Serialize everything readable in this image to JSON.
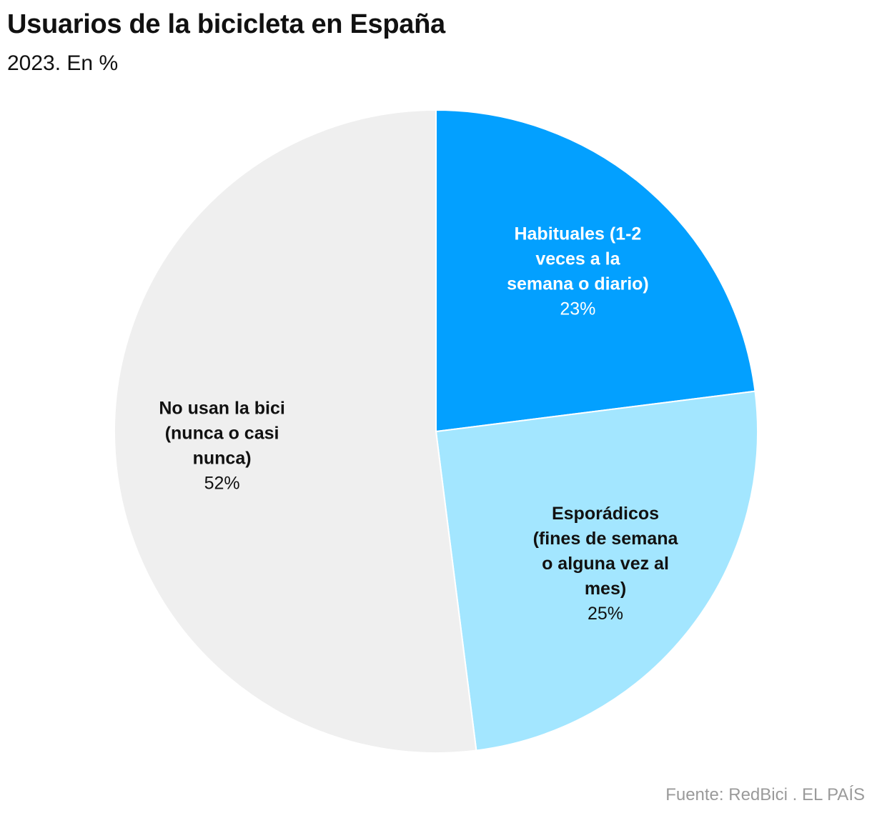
{
  "header": {
    "title": "Usuarios de la bicicleta en España",
    "subtitle": "2023. En %"
  },
  "footer": {
    "source": "Fuente: RedBici . EL PAÍS"
  },
  "chart_data": {
    "type": "pie",
    "title": "Usuarios de la bicicleta en España",
    "subtitle": "2023. En %",
    "start_angle_deg": 0,
    "direction": "clockwise",
    "slices": [
      {
        "label_lines": [
          "Habituales (1-2",
          "veces a la",
          "semana o diario)"
        ],
        "value": 23,
        "value_label": "23%",
        "color": "#03a0ff",
        "text_color": "#ffffff"
      },
      {
        "label_lines": [
          "Esporádicos",
          "(fines de semana",
          "o alguna vez al",
          "mes)"
        ],
        "value": 25,
        "value_label": "25%",
        "color": "#a3e6ff",
        "text_color": "#111111"
      },
      {
        "label_lines": [
          "No usan la bici",
          "(nunca o casi",
          "nunca)"
        ],
        "value": 52,
        "value_label": "52%",
        "color": "#efefef",
        "text_color": "#111111"
      }
    ]
  }
}
